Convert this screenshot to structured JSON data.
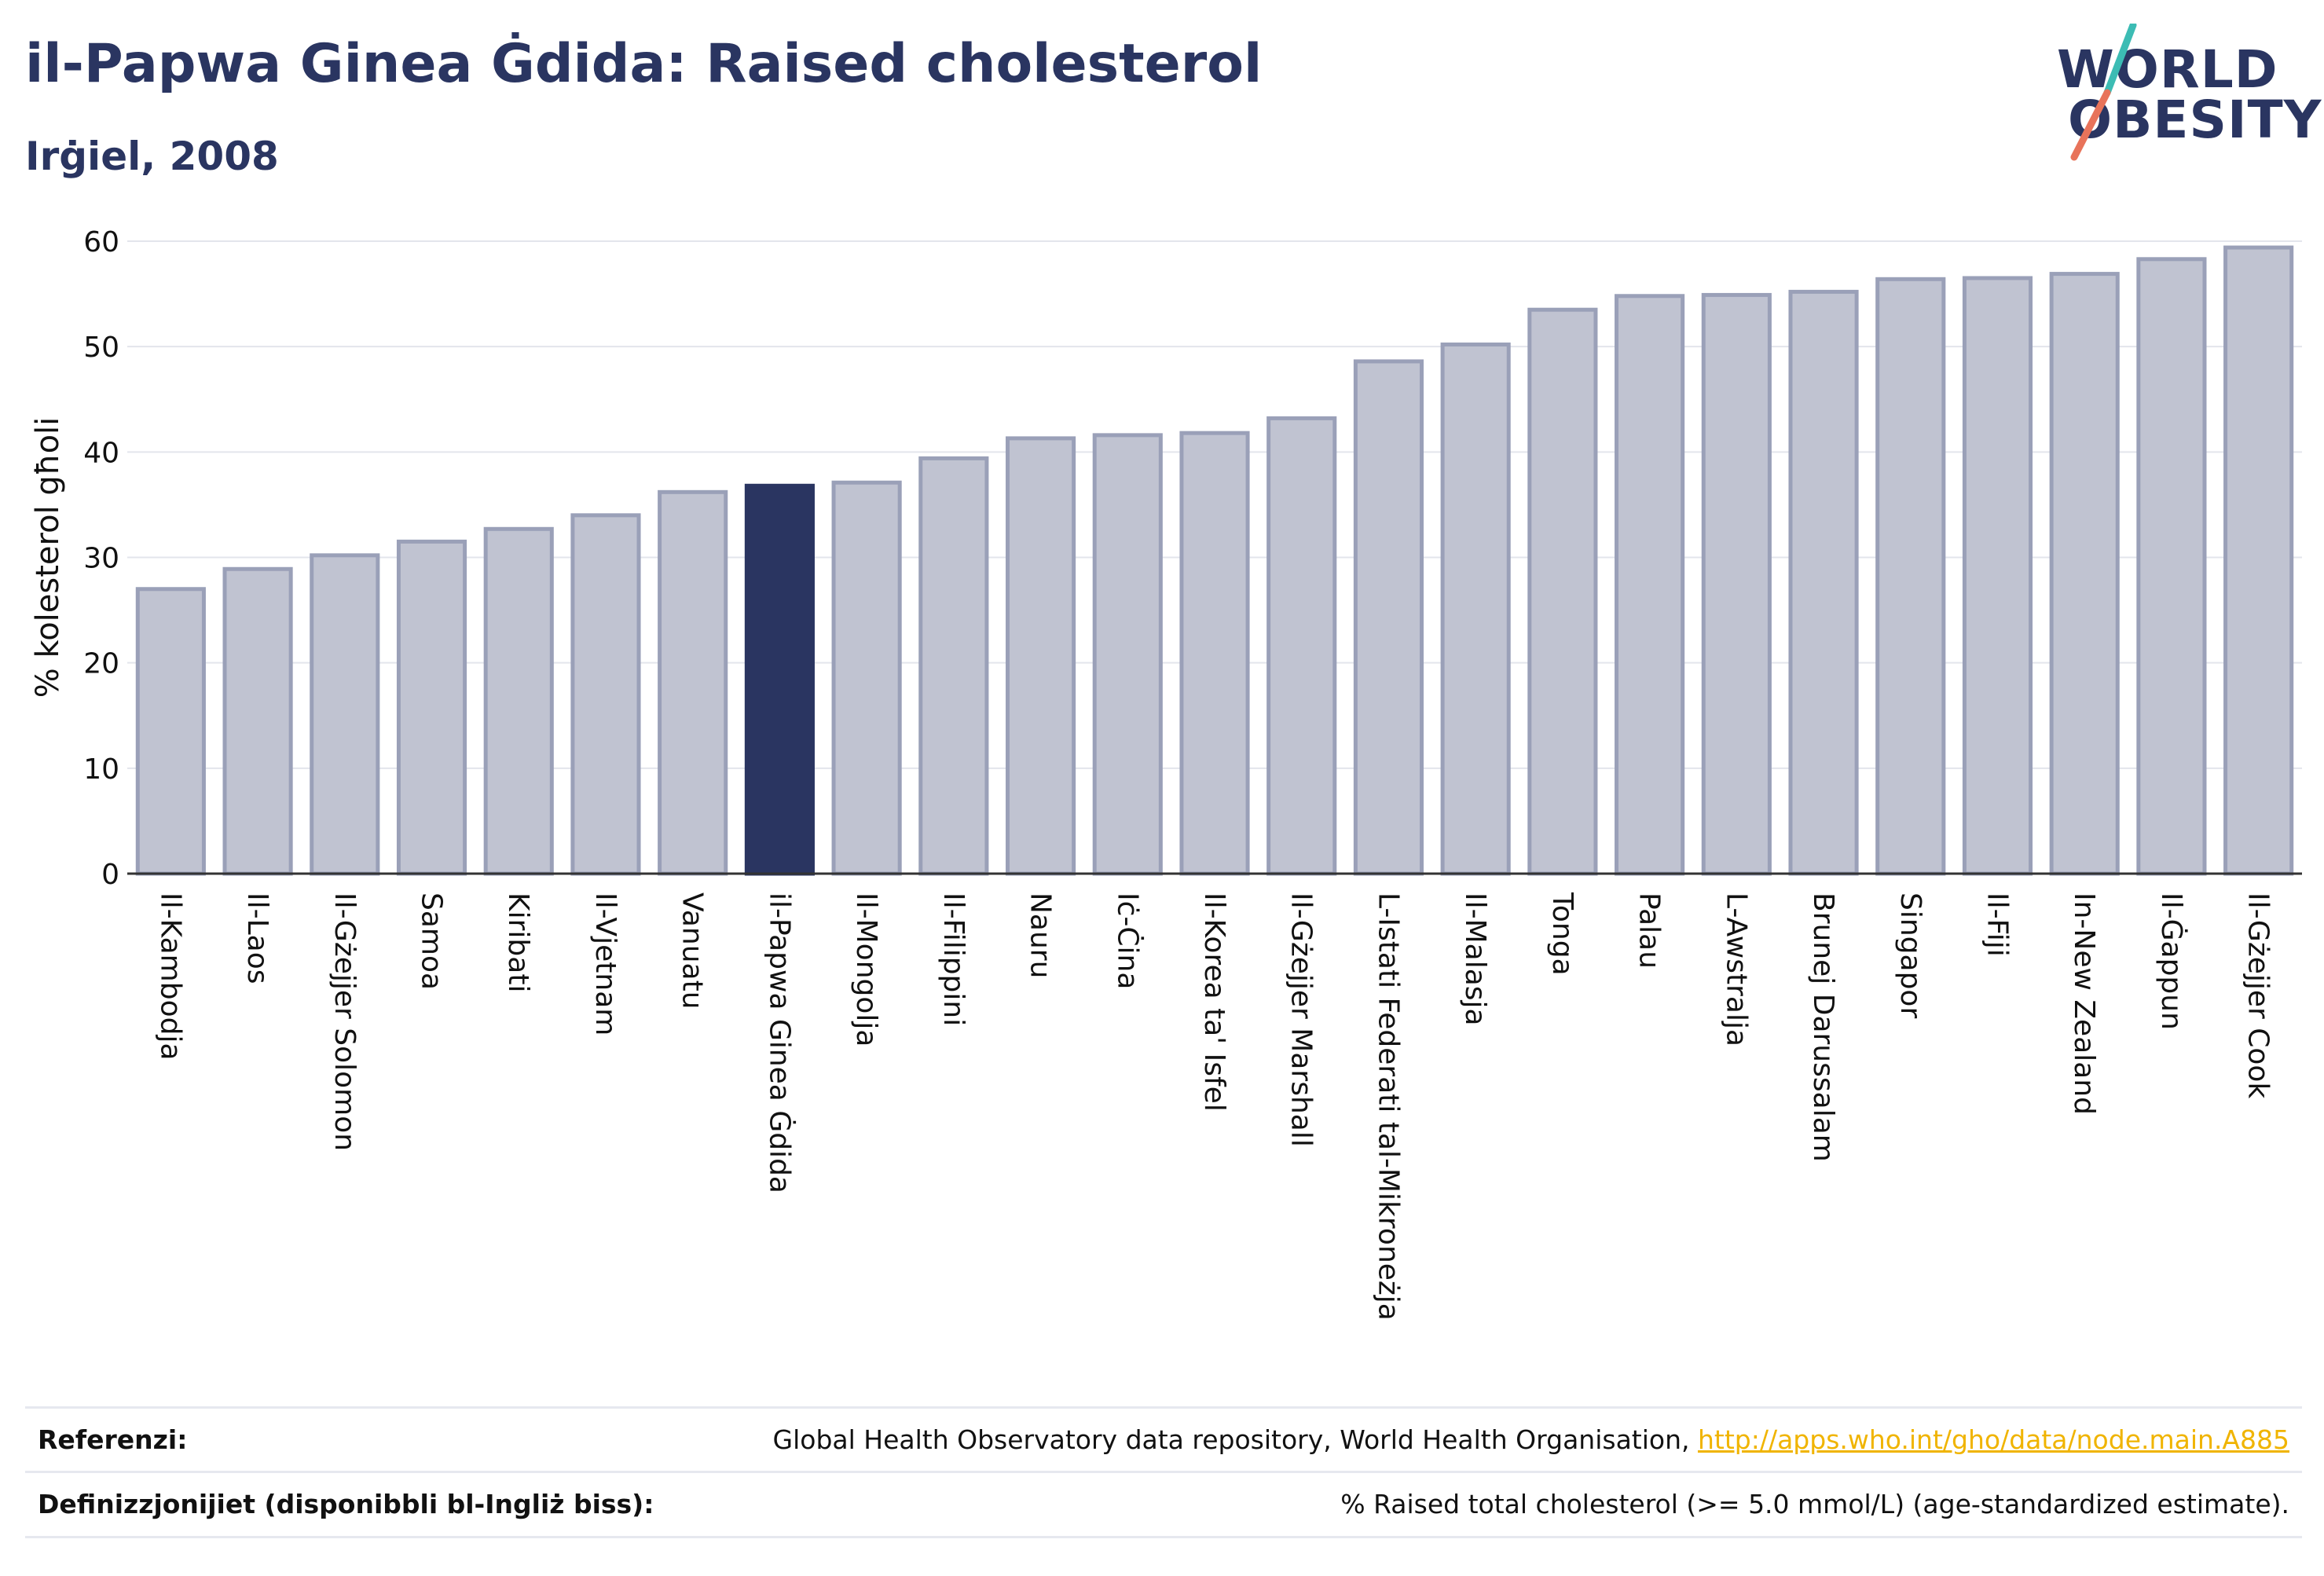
{
  "header": {
    "title": "il-Papwa Ginea Ġdida: Raised cholesterol",
    "subtitle": "Irġiel, 2008"
  },
  "logo": {
    "line1": "WORLD",
    "line2": "OBESITY",
    "accent_teal": "#3cbcb4",
    "accent_coral": "#e8735a"
  },
  "colors": {
    "bar": "#c0c3d1",
    "bar_border": "#9aa0b8",
    "highlight": "#2a3561",
    "grid": "#e3e5ec",
    "text": "#2a3561"
  },
  "chart_data": {
    "type": "bar",
    "ylabel": "% kolesterol għoli",
    "ylim": [
      0,
      60
    ],
    "yticks": [
      0,
      10,
      20,
      30,
      40,
      50,
      60
    ],
    "grid": true,
    "highlight": "il-Papwa Ginea Ġdida",
    "categories": [
      "Il-Kambodja",
      "Il-Laos",
      "Il-Gżejjer Solomon",
      "Samoa",
      "Kiribati",
      "Il-Vjetnam",
      "Vanuatu",
      "il-Papwa Ginea Ġdida",
      "Il-Mongolja",
      "Il-Filippini",
      "Nauru",
      "Iċ-Ċina",
      "Il-Korea ta' Isfel",
      "Il-Gżejjer Marshall",
      "L-Istati Federati tal-Mikroneżja",
      "Il-Malasja",
      "Tonga",
      "Palau",
      "L-Awstralja",
      "Brunej Darussalam",
      "Singapor",
      "Il-Fiji",
      "In-New Zealand",
      "Il-Ġappun",
      "Il-Gżejjer Cook"
    ],
    "values": [
      27.0,
      28.9,
      30.2,
      31.5,
      32.7,
      34.0,
      36.2,
      36.8,
      37.1,
      39.4,
      41.3,
      41.6,
      41.8,
      43.2,
      48.6,
      50.2,
      53.5,
      54.8,
      54.9,
      55.2,
      56.4,
      56.5,
      56.9,
      58.3,
      59.4
    ]
  },
  "footer": {
    "references_label": "Referenzi:",
    "references_text": "Global Health Observatory data repository, World Health Organisation, ",
    "references_link": "http://apps.who.int/gho/data/node.main.A885",
    "definitions_label": "Definizzjonijiet (disponibbli bl-Ingliż biss):",
    "definitions_text": "% Raised total cholesterol (>= 5.0 mmol/L) (age-standardized estimate)."
  }
}
